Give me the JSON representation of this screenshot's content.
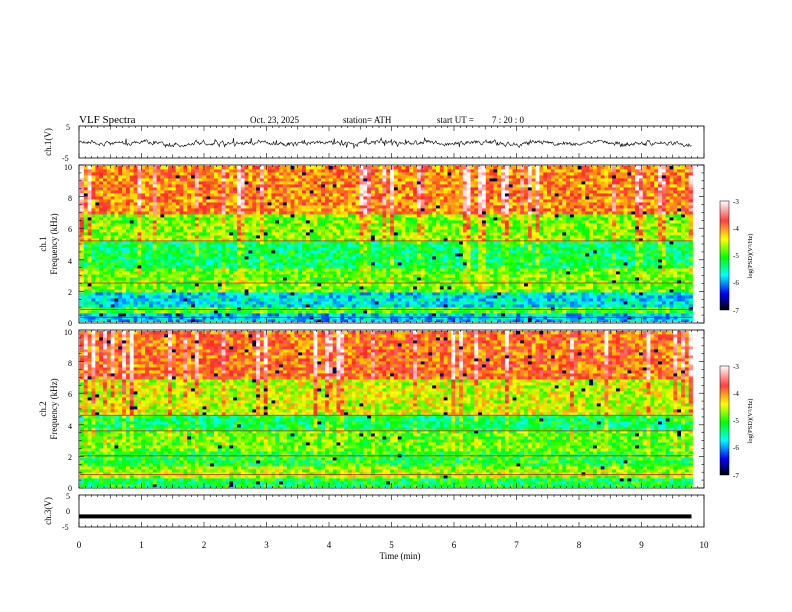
{
  "header": {
    "title": "VLF  Spectra",
    "date": "Oct. 23, 2025",
    "station": "station= ATH",
    "start_label": "start  UT  =",
    "start_time": "7  : 20 : 0"
  },
  "panels": {
    "ch1_wave": {
      "ylabel": "ch.1(V)",
      "yticks": [
        "5",
        "-5"
      ]
    },
    "ch1_spec": {
      "ylabel_line1": "ch.1",
      "ylabel_line2": "Frequency  (kHz)",
      "yticks": [
        "10",
        "8",
        "6",
        "4",
        "2",
        "0"
      ]
    },
    "ch2_spec": {
      "ylabel_line1": "ch.2",
      "ylabel_line2": "Frequency  (kHz)",
      "yticks": [
        "10",
        "8",
        "6",
        "4",
        "2",
        "0"
      ]
    },
    "ch3_wave": {
      "ylabel": "ch.3(V)",
      "yticks": [
        "5",
        "0",
        "-5"
      ]
    }
  },
  "colorbar": {
    "label": "log(PSD)(V²/Hz)",
    "ticks": [
      "-3",
      "-4",
      "-5",
      "-6",
      "-7"
    ],
    "colors": [
      "#ffffff",
      "#ff0000",
      "#ffff00",
      "#00ff00",
      "#00ffff",
      "#0000ff",
      "#000000"
    ]
  },
  "xaxis": {
    "label": "Time  (min)",
    "ticks": [
      "0",
      "1",
      "2",
      "3",
      "4",
      "5",
      "6",
      "7",
      "8",
      "9",
      "10"
    ]
  },
  "chart_data": [
    {
      "type": "line",
      "name": "ch.1 waveform",
      "xlim": [
        0,
        10
      ],
      "ylim": [
        -5,
        5
      ],
      "approx_range_V": [
        -2,
        1.5
      ]
    },
    {
      "type": "heatmap",
      "name": "ch.1 spectrogram",
      "xlim": [
        0,
        9.8
      ],
      "ylim": [
        0,
        10
      ],
      "zlabel": "log(PSD)(V²/Hz)",
      "zlim": [
        -7,
        -3
      ],
      "bands": [
        {
          "from_kHz": 0,
          "to_kHz": 0.6,
          "level": -5.8
        },
        {
          "from_kHz": 0.6,
          "to_kHz": 1.0,
          "level": -5.0
        },
        {
          "from_kHz": 1.0,
          "to_kHz": 2.0,
          "level": -5.7
        },
        {
          "from_kHz": 2.0,
          "to_kHz": 3.4,
          "level": -4.9
        },
        {
          "from_kHz": 3.4,
          "to_kHz": 5.2,
          "level": -5.3
        },
        {
          "from_kHz": 5.2,
          "to_kHz": 7.0,
          "level": -4.8
        },
        {
          "from_kHz": 7.0,
          "to_kHz": 10.0,
          "level": -4.1
        }
      ],
      "tone_lines_kHz": [
        0.3,
        0.8,
        2.5,
        5.2
      ]
    },
    {
      "type": "heatmap",
      "name": "ch.2 spectrogram",
      "xlim": [
        0,
        9.8
      ],
      "ylim": [
        0,
        10
      ],
      "zlabel": "log(PSD)(V²/Hz)",
      "zlim": [
        -7,
        -3
      ],
      "bands": [
        {
          "from_kHz": 0,
          "to_kHz": 0.6,
          "level": -5.2
        },
        {
          "from_kHz": 0.6,
          "to_kHz": 1.3,
          "level": -4.7
        },
        {
          "from_kHz": 1.3,
          "to_kHz": 2.4,
          "level": -5.1
        },
        {
          "from_kHz": 2.4,
          "to_kHz": 3.6,
          "level": -4.9
        },
        {
          "from_kHz": 3.6,
          "to_kHz": 4.6,
          "level": -5.3
        },
        {
          "from_kHz": 4.6,
          "to_kHz": 7.0,
          "level": -4.6
        },
        {
          "from_kHz": 7.0,
          "to_kHz": 10.0,
          "level": -4.0
        }
      ],
      "tone_lines_kHz": [
        0.8,
        2.0,
        3.6,
        4.6
      ]
    },
    {
      "type": "line",
      "name": "ch.3 waveform",
      "xlim": [
        0,
        10
      ],
      "ylim": [
        -5,
        5
      ],
      "approx_value_V": -1.8
    }
  ]
}
